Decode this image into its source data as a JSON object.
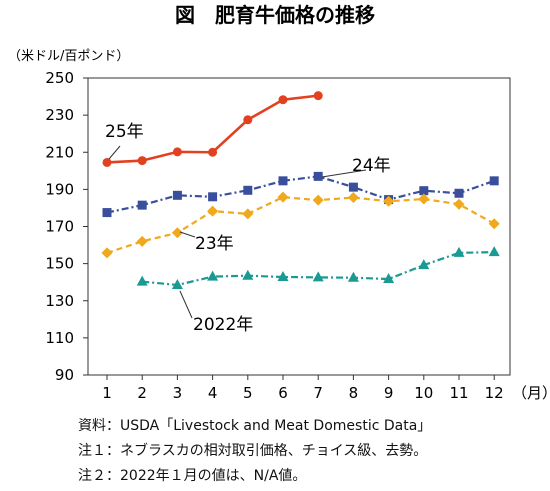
{
  "chart_data": {
    "type": "line",
    "title": "図　肥育牛価格の推移",
    "ylabel": "（米ドル/百ポンド）",
    "xlabel": "（月）",
    "categories": [
      "1",
      "2",
      "3",
      "4",
      "5",
      "6",
      "7",
      "8",
      "9",
      "10",
      "11",
      "12"
    ],
    "ylim": [
      90,
      250
    ],
    "yticks": [
      90,
      110,
      130,
      150,
      170,
      190,
      210,
      230,
      250
    ],
    "grid": false,
    "legend": "inline labels",
    "series": [
      {
        "name": "25年",
        "color": "#e2411f",
        "marker": "circle",
        "dash": "solid",
        "values": [
          204.5,
          205.5,
          210.2,
          210.0,
          227.5,
          238.3,
          240.5,
          null,
          null,
          null,
          null,
          null
        ]
      },
      {
        "name": "24年",
        "color": "#3a4f9c",
        "marker": "square",
        "dash": "dashdot",
        "values": [
          177.5,
          181.5,
          186.8,
          186.0,
          189.5,
          194.6,
          197.0,
          191.2,
          184.5,
          189.3,
          187.9,
          194.6
        ]
      },
      {
        "name": "23年",
        "color": "#f0a81c",
        "marker": "diamond",
        "dash": "dashed",
        "values": [
          155.8,
          162.0,
          166.6,
          178.3,
          176.8,
          185.8,
          184.2,
          185.6,
          183.6,
          184.8,
          182.0,
          171.5
        ]
      },
      {
        "name": "2022年",
        "color": "#1a9a92",
        "marker": "triangle",
        "dash": "dashdot",
        "values": [
          null,
          140.3,
          138.5,
          143.0,
          143.5,
          142.8,
          142.6,
          142.4,
          141.7,
          149.2,
          155.8,
          156.2
        ]
      }
    ]
  },
  "notes": [
    "資料：USDA「Livestock and Meat Domestic Data」",
    "注１：ネブラスカの相対取引価格、チョイス級、去勢。",
    "注２：2022年１月の値は、N/A値。"
  ]
}
